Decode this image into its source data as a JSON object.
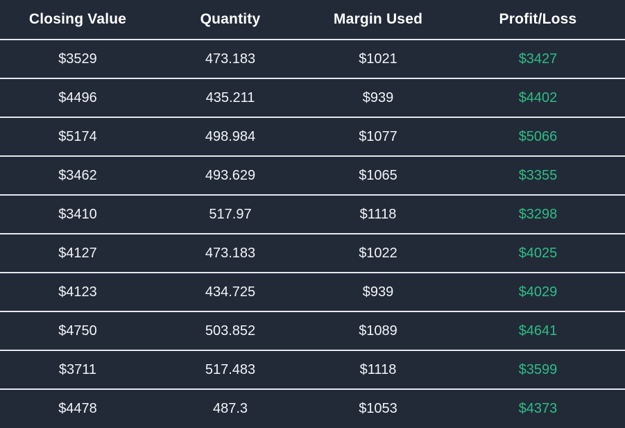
{
  "page": {
    "background": "#222A38",
    "divider_color": "#E6E8F0",
    "header_text_color": "#FFFFFF",
    "body_text_color": "#F2F4F8",
    "profit_color": "#2EBD85"
  },
  "table": {
    "columns": [
      {
        "key": "closing_value",
        "label": "Closing Value"
      },
      {
        "key": "quantity",
        "label": "Quantity"
      },
      {
        "key": "margin_used",
        "label": "Margin Used"
      },
      {
        "key": "profit_loss",
        "label": "Profit/Loss"
      }
    ],
    "rows": [
      {
        "closing_value": "$3529",
        "quantity": "473.183",
        "margin_used": "$1021",
        "profit_loss": "$3427"
      },
      {
        "closing_value": "$4496",
        "quantity": "435.211",
        "margin_used": "$939",
        "profit_loss": "$4402"
      },
      {
        "closing_value": "$5174",
        "quantity": "498.984",
        "margin_used": "$1077",
        "profit_loss": "$5066"
      },
      {
        "closing_value": "$3462",
        "quantity": "493.629",
        "margin_used": "$1065",
        "profit_loss": "$3355"
      },
      {
        "closing_value": "$3410",
        "quantity": "517.97",
        "margin_used": "$1118",
        "profit_loss": "$3298"
      },
      {
        "closing_value": "$4127",
        "quantity": "473.183",
        "margin_used": "$1022",
        "profit_loss": "$4025"
      },
      {
        "closing_value": "$4123",
        "quantity": "434.725",
        "margin_used": "$939",
        "profit_loss": "$4029"
      },
      {
        "closing_value": "$4750",
        "quantity": "503.852",
        "margin_used": "$1089",
        "profit_loss": "$4641"
      },
      {
        "closing_value": "$3711",
        "quantity": "517.483",
        "margin_used": "$1118",
        "profit_loss": "$3599"
      },
      {
        "closing_value": "$4478",
        "quantity": "487.3",
        "margin_used": "$1053",
        "profit_loss": "$4373"
      }
    ]
  }
}
